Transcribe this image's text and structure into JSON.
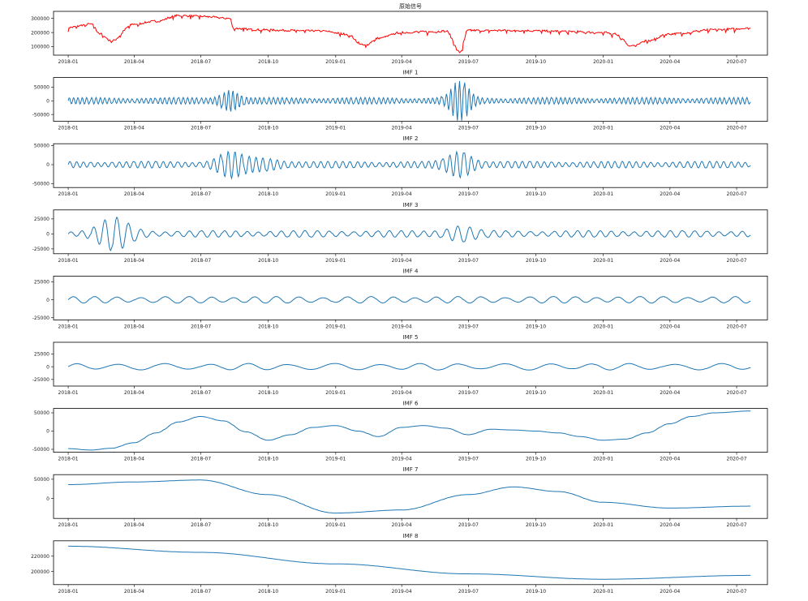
{
  "figure": {
    "background": "#ffffff",
    "signal_color": "#ff0000",
    "imf_color": "#1f77b4",
    "axis_color": "#000000"
  },
  "x_tick_labels": [
    "2018-01",
    "2018-04",
    "2018-07",
    "2018-10",
    "2019-01",
    "2019-04",
    "2019-07",
    "2019-10",
    "2020-01",
    "2020-04",
    "2020-07"
  ],
  "chart_data": [
    {
      "type": "line",
      "title": "原始信号",
      "series_name": "原始信号",
      "color": "#ff0000",
      "ylim": [
        40000,
        350000
      ],
      "yticks": [
        100000,
        200000,
        300000
      ],
      "ytick_labels": [
        "100000",
        "200000",
        "300000"
      ],
      "x": [
        "2018-01-01",
        "2018-02-01",
        "2018-02-15",
        "2018-03-01",
        "2018-04-01",
        "2018-05-01",
        "2018-06-01",
        "2018-07-01",
        "2018-08-10",
        "2018-08-15",
        "2018-09-15",
        "2018-11-01",
        "2018-12-15",
        "2019-01-15",
        "2019-02-10",
        "2019-03-01",
        "2019-04-01",
        "2019-05-01",
        "2019-06-01",
        "2019-06-20",
        "2019-07-01",
        "2019-09-01",
        "2019-11-01",
        "2020-01-01",
        "2020-01-15",
        "2020-02-10",
        "2020-03-01",
        "2020-04-01",
        "2020-06-01",
        "2020-07-20"
      ],
      "y": [
        235000,
        260000,
        190000,
        140000,
        260000,
        280000,
        320000,
        315000,
        300000,
        230000,
        220000,
        215000,
        210000,
        190000,
        110000,
        160000,
        200000,
        205000,
        210000,
        60000,
        215000,
        215000,
        210000,
        200000,
        195000,
        105000,
        140000,
        190000,
        220000,
        230000
      ]
    },
    {
      "type": "line",
      "title": "IMF 1",
      "series_name": "IMF 1",
      "color": "#1f77b4",
      "ylim": [
        -75000,
        85000
      ],
      "yticks": [
        -50000,
        0,
        50000
      ],
      "ytick_labels": [
        "-50000",
        "0",
        "50000"
      ],
      "x_range": [
        "2018-01-01",
        "2020-07-20"
      ],
      "y_range": [
        -70000,
        75000
      ]
    },
    {
      "type": "line",
      "title": "IMF 2",
      "series_name": "IMF 2",
      "color": "#1f77b4",
      "ylim": [
        -60000,
        55000
      ],
      "yticks": [
        -50000,
        0,
        50000
      ],
      "ytick_labels": [
        "-50000",
        "0",
        "50000"
      ],
      "x_range": [
        "2018-01-01",
        "2020-07-20"
      ],
      "y_range": [
        -55000,
        50000
      ]
    },
    {
      "type": "line",
      "title": "IMF 3",
      "series_name": "IMF 3",
      "color": "#1f77b4",
      "ylim": [
        -33000,
        40000
      ],
      "yticks": [
        -25000,
        0,
        25000
      ],
      "ytick_labels": [
        "-25000",
        "0",
        "25000"
      ],
      "x_range": [
        "2018-01-01",
        "2020-07-20"
      ],
      "y_range": [
        -28000,
        38000
      ]
    },
    {
      "type": "line",
      "title": "IMF 4",
      "series_name": "IMF 4",
      "color": "#1f77b4",
      "ylim": [
        -28000,
        33000
      ],
      "yticks": [
        -25000,
        0,
        25000
      ],
      "ytick_labels": [
        "-25000",
        "0",
        "25000"
      ],
      "x_range": [
        "2018-01-01",
        "2020-07-20"
      ],
      "y_range": [
        -25000,
        30000
      ]
    },
    {
      "type": "line",
      "title": "IMF 5",
      "series_name": "IMF 5",
      "color": "#1f77b4",
      "ylim": [
        -38000,
        48000
      ],
      "yticks": [
        -25000,
        0,
        25000
      ],
      "ytick_labels": [
        "-25000",
        "0",
        "25000"
      ],
      "x_range": [
        "2018-01-01",
        "2020-07-20"
      ],
      "y_range": [
        -35000,
        42000
      ]
    },
    {
      "type": "line",
      "title": "IMF 6",
      "series_name": "IMF 6",
      "color": "#1f77b4",
      "ylim": [
        -58000,
        62000
      ],
      "yticks": [
        -50000,
        0,
        50000
      ],
      "ytick_labels": [
        "-50000",
        "0",
        "50000"
      ],
      "x": [
        "2018-01-01",
        "2018-02-01",
        "2018-03-01",
        "2018-04-01",
        "2018-05-01",
        "2018-06-01",
        "2018-07-01",
        "2018-08-01",
        "2018-09-01",
        "2018-10-01",
        "2018-11-01",
        "2018-12-01",
        "2019-01-01",
        "2019-02-01",
        "2019-03-01",
        "2019-04-01",
        "2019-05-01",
        "2019-06-01",
        "2019-07-01",
        "2019-08-01",
        "2019-09-01",
        "2019-10-01",
        "2019-11-01",
        "2019-12-01",
        "2020-01-01",
        "2020-02-01",
        "2020-03-01",
        "2020-04-01",
        "2020-05-01",
        "2020-06-01",
        "2020-07-20"
      ],
      "y": [
        -48000,
        -52000,
        -47000,
        -32000,
        -5000,
        25000,
        40000,
        28000,
        -2000,
        -25000,
        -10000,
        10000,
        15000,
        0,
        -15000,
        10000,
        15000,
        8000,
        -10000,
        5000,
        3000,
        0,
        -5000,
        -15000,
        -25000,
        -22000,
        -5000,
        20000,
        40000,
        50000,
        55000
      ]
    },
    {
      "type": "line",
      "title": "IMF 7",
      "series_name": "IMF 7",
      "color": "#1f77b4",
      "ylim": [
        -52000,
        62000
      ],
      "yticks": [
        0,
        50000
      ],
      "ytick_labels": [
        "0",
        "50000"
      ],
      "x": [
        "2018-01-01",
        "2018-04-01",
        "2018-07-01",
        "2018-10-01",
        "2019-01-01",
        "2019-04-01",
        "2019-07-01",
        "2019-09-01",
        "2019-11-01",
        "2020-01-01",
        "2020-04-01",
        "2020-07-20"
      ],
      "y": [
        36000,
        43000,
        48000,
        10000,
        -38000,
        -30000,
        10000,
        30000,
        18000,
        -10000,
        -25000,
        -20000
      ]
    },
    {
      "type": "line",
      "title": "IMF 8",
      "series_name": "IMF 8",
      "color": "#1f77b4",
      "ylim": [
        183000,
        240000
      ],
      "yticks": [
        200000,
        220000
      ],
      "ytick_labels": [
        "200000",
        "220000"
      ],
      "x": [
        "2018-01-01",
        "2018-07-01",
        "2019-01-01",
        "2019-07-01",
        "2020-01-01",
        "2020-07-20"
      ],
      "y": [
        233000,
        225000,
        210000,
        197000,
        190000,
        195000
      ]
    }
  ]
}
